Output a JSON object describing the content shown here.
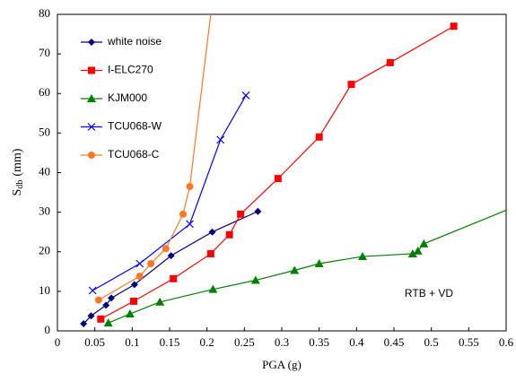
{
  "chart_data": {
    "type": "line",
    "xlabel": "PGA (g)",
    "ylabel": {
      "text": "S",
      "subscript": "db",
      "unit": "(mm)"
    },
    "annotation": "RTB + VD",
    "xlim": [
      0,
      0.6
    ],
    "ylim": [
      0,
      80
    ],
    "xticks": [
      0,
      0.05,
      0.1,
      0.15,
      0.2,
      0.25,
      0.3,
      0.35,
      0.4,
      0.45,
      0.5,
      0.55,
      0.6
    ],
    "yticks": [
      0,
      10,
      20,
      30,
      40,
      50,
      60,
      70,
      80
    ],
    "legend": "top-left",
    "series": [
      {
        "name": "white noise",
        "color": "#000080",
        "marker": "diamond",
        "x": [
          0.035,
          0.045,
          0.065,
          0.072,
          0.103,
          0.152,
          0.207,
          0.268
        ],
        "values": [
          1.8,
          3.8,
          6.5,
          8.3,
          11.7,
          19,
          25,
          30.2
        ]
      },
      {
        "name": "I-ELC270",
        "color": "#ff0000",
        "marker": "square",
        "x": [
          0.058,
          0.102,
          0.155,
          0.205,
          0.23,
          0.245,
          0.295,
          0.35,
          0.393,
          0.445,
          0.53
        ],
        "values": [
          3,
          7.5,
          13.2,
          19.5,
          24.3,
          29.5,
          38.5,
          49,
          62.3,
          67.8,
          77
        ]
      },
      {
        "name": "KJM000",
        "color": "#008000",
        "marker": "triangle",
        "x": [
          0.068,
          0.097,
          0.137,
          0.208,
          0.265,
          0.317,
          0.35,
          0.408,
          0.475,
          0.482,
          0.49,
          0.6
        ],
        "values": [
          2,
          4.3,
          7.3,
          10.5,
          12.8,
          15.3,
          17,
          18.8,
          19.5,
          20.2,
          22,
          30.5
        ],
        "markers": [
          true,
          true,
          true,
          true,
          true,
          true,
          true,
          true,
          true,
          true,
          true,
          false
        ]
      },
      {
        "name": "TCU068-W",
        "color": "#0000ff",
        "marker": "x",
        "x": [
          0.047,
          0.11,
          0.177,
          0.218,
          0.252
        ],
        "values": [
          10.2,
          17,
          27,
          48.3,
          59.5
        ]
      },
      {
        "name": "TCU068-C",
        "color": "#ff7722",
        "marker": "circle",
        "x": [
          0.055,
          0.11,
          0.125,
          0.145,
          0.168,
          0.177,
          0.205
        ],
        "values": [
          7.8,
          13.8,
          17,
          20.8,
          29.5,
          36.5,
          80
        ],
        "markers": [
          true,
          true,
          true,
          true,
          true,
          true,
          false
        ]
      }
    ]
  }
}
